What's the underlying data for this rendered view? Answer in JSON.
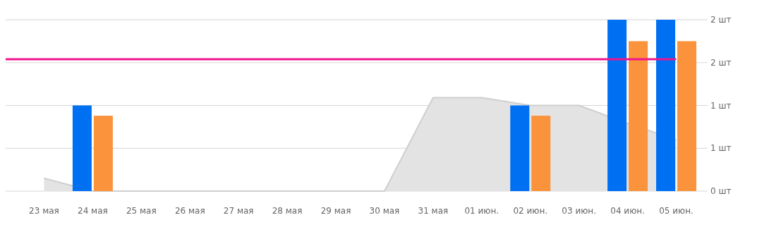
{
  "chart_data": {
    "type": "bar",
    "categories": [
      "23 мая",
      "24 мая",
      "25 мая",
      "26 мая",
      "27 мая",
      "28 мая",
      "29 мая",
      "30 мая",
      "31 мая",
      "01 июн.",
      "02 июн.",
      "03 июн.",
      "04 июн.",
      "05 июн."
    ],
    "series": [
      {
        "type": "area",
        "color": "#e3e3e3",
        "values": [
          0.15,
          0,
          0,
          0,
          0,
          0,
          0,
          0,
          1.09,
          1.09,
          1,
          1,
          0.79,
          0.6
        ]
      },
      {
        "color": "#0070f3",
        "values": [
          0,
          1,
          0,
          0,
          0,
          0,
          0,
          0,
          0,
          0,
          1,
          0,
          2,
          2
        ]
      },
      {
        "color": "#fb923c",
        "values": [
          0,
          0.88,
          0,
          0,
          0,
          0,
          0,
          0,
          0,
          0,
          0.88,
          0,
          1.75,
          1.75
        ]
      }
    ],
    "ylim": [
      0,
      2
    ],
    "yticks": [
      {
        "value": 0,
        "label": "0 шт"
      },
      {
        "value": 0.5,
        "label": "1 шт"
      },
      {
        "value": 1,
        "label": "1 шт"
      },
      {
        "value": 1.5,
        "label": "2 шт"
      },
      {
        "value": 2,
        "label": "2 шт"
      }
    ],
    "grid": "y",
    "ref_lines": [
      {
        "axis": "y",
        "value": 1.54,
        "color": "#f0148c"
      }
    ]
  }
}
